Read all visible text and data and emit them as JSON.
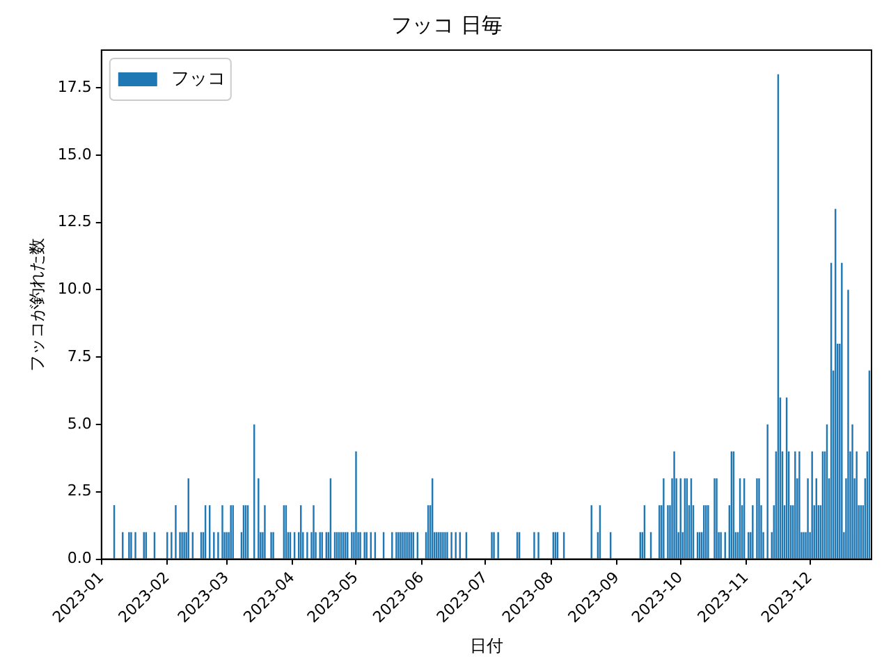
{
  "chart_data": {
    "type": "bar",
    "title": "フッコ 日毎",
    "xlabel": "日付",
    "ylabel": "フッコが釣れた数",
    "x": [
      "2023-01-07",
      "2023-01-11",
      "2023-01-14",
      "2023-01-15",
      "2023-01-17",
      "2023-01-21",
      "2023-01-22",
      "2023-01-26",
      "2023-02-01",
      "2023-02-03",
      "2023-02-05",
      "2023-02-07",
      "2023-02-08",
      "2023-02-09",
      "2023-02-10",
      "2023-02-11",
      "2023-02-13",
      "2023-02-17",
      "2023-02-18",
      "2023-02-19",
      "2023-02-21",
      "2023-02-23",
      "2023-02-25",
      "2023-02-27",
      "2023-02-28",
      "2023-03-01",
      "2023-03-02",
      "2023-03-03",
      "2023-03-04",
      "2023-03-08",
      "2023-03-09",
      "2023-03-10",
      "2023-03-11",
      "2023-03-14",
      "2023-03-16",
      "2023-03-17",
      "2023-03-18",
      "2023-03-19",
      "2023-03-22",
      "2023-03-23",
      "2023-03-28",
      "2023-03-29",
      "2023-03-30",
      "2023-03-31",
      "2023-04-02",
      "2023-04-04",
      "2023-04-05",
      "2023-04-06",
      "2023-04-08",
      "2023-04-10",
      "2023-04-11",
      "2023-04-12",
      "2023-04-14",
      "2023-04-15",
      "2023-04-17",
      "2023-04-18",
      "2023-04-19",
      "2023-04-21",
      "2023-04-22",
      "2023-04-23",
      "2023-04-24",
      "2023-04-25",
      "2023-04-26",
      "2023-04-27",
      "2023-04-29",
      "2023-04-30",
      "2023-05-01",
      "2023-05-02",
      "2023-05-03",
      "2023-05-05",
      "2023-05-06",
      "2023-05-08",
      "2023-05-10",
      "2023-05-14",
      "2023-05-18",
      "2023-05-20",
      "2023-05-21",
      "2023-05-22",
      "2023-05-23",
      "2023-05-24",
      "2023-05-25",
      "2023-05-26",
      "2023-05-27",
      "2023-05-28",
      "2023-05-30",
      "2023-06-03",
      "2023-06-04",
      "2023-06-05",
      "2023-06-06",
      "2023-06-07",
      "2023-06-08",
      "2023-06-09",
      "2023-06-10",
      "2023-06-11",
      "2023-06-12",
      "2023-06-13",
      "2023-06-15",
      "2023-06-17",
      "2023-06-19",
      "2023-06-22",
      "2023-07-04",
      "2023-07-05",
      "2023-07-07",
      "2023-07-16",
      "2023-07-17",
      "2023-07-24",
      "2023-07-26",
      "2023-08-02",
      "2023-08-03",
      "2023-08-04",
      "2023-08-07",
      "2023-08-20",
      "2023-08-23",
      "2023-08-24",
      "2023-08-29",
      "2023-09-12",
      "2023-09-13",
      "2023-09-14",
      "2023-09-17",
      "2023-09-21",
      "2023-09-22",
      "2023-09-23",
      "2023-09-25",
      "2023-09-26",
      "2023-09-27",
      "2023-09-28",
      "2023-09-29",
      "2023-09-30",
      "2023-10-01",
      "2023-10-02",
      "2023-10-03",
      "2023-10-04",
      "2023-10-05",
      "2023-10-06",
      "2023-10-07",
      "2023-10-09",
      "2023-10-10",
      "2023-10-11",
      "2023-10-12",
      "2023-10-13",
      "2023-10-14",
      "2023-10-17",
      "2023-10-18",
      "2023-10-19",
      "2023-10-20",
      "2023-10-22",
      "2023-10-24",
      "2023-10-25",
      "2023-10-26",
      "2023-10-27",
      "2023-10-28",
      "2023-10-29",
      "2023-10-30",
      "2023-10-31",
      "2023-11-02",
      "2023-11-03",
      "2023-11-04",
      "2023-11-06",
      "2023-11-07",
      "2023-11-08",
      "2023-11-09",
      "2023-11-11",
      "2023-11-13",
      "2023-11-14",
      "2023-11-15",
      "2023-11-16",
      "2023-11-17",
      "2023-11-18",
      "2023-11-19",
      "2023-11-20",
      "2023-11-21",
      "2023-11-22",
      "2023-11-23",
      "2023-11-24",
      "2023-11-25",
      "2023-11-26",
      "2023-11-27",
      "2023-11-28",
      "2023-11-29",
      "2023-11-30",
      "2023-12-01",
      "2023-12-02",
      "2023-12-03",
      "2023-12-04",
      "2023-12-05",
      "2023-12-06",
      "2023-12-07",
      "2023-12-08",
      "2023-12-09",
      "2023-12-10",
      "2023-12-11",
      "2023-12-12",
      "2023-12-13",
      "2023-12-14",
      "2023-12-15",
      "2023-12-16",
      "2023-12-17",
      "2023-12-18",
      "2023-12-19",
      "2023-12-20",
      "2023-12-21",
      "2023-12-22",
      "2023-12-23",
      "2023-12-24",
      "2023-12-25",
      "2023-12-26",
      "2023-12-27",
      "2023-12-28",
      "2023-12-29"
    ],
    "series": [
      {
        "name": "フッコ",
        "color": "#1f77b4",
        "values": [
          2,
          1,
          1,
          1,
          1,
          1,
          1,
          1,
          1,
          1,
          2,
          1,
          1,
          1,
          1,
          3,
          1,
          1,
          1,
          2,
          2,
          1,
          1,
          2,
          1,
          1,
          1,
          2,
          2,
          1,
          2,
          2,
          2,
          5,
          3,
          1,
          1,
          2,
          1,
          1,
          2,
          2,
          1,
          1,
          1,
          1,
          2,
          1,
          1,
          1,
          2,
          1,
          1,
          1,
          1,
          1,
          3,
          1,
          1,
          1,
          1,
          1,
          1,
          1,
          1,
          1,
          4,
          1,
          1,
          1,
          1,
          1,
          1,
          1,
          1,
          1,
          1,
          1,
          1,
          1,
          1,
          1,
          1,
          1,
          1,
          1,
          2,
          2,
          3,
          1,
          1,
          1,
          1,
          1,
          1,
          1,
          1,
          1,
          1,
          1,
          1,
          1,
          1,
          1,
          1,
          1,
          1,
          1,
          1,
          1,
          1,
          2,
          1,
          2,
          1,
          1,
          1,
          2,
          1,
          2,
          2,
          3,
          2,
          2,
          3,
          4,
          3,
          1,
          3,
          1,
          3,
          3,
          2,
          3,
          2,
          1,
          1,
          1,
          2,
          2,
          2,
          3,
          3,
          1,
          1,
          1,
          2,
          4,
          4,
          1,
          1,
          3,
          2,
          3,
          1,
          1,
          2,
          3,
          3,
          2,
          1,
          5,
          1,
          2,
          4,
          18,
          6,
          4,
          2,
          6,
          4,
          2,
          2,
          4,
          3,
          4,
          1,
          1,
          1,
          3,
          1,
          4,
          2,
          3,
          2,
          2,
          4,
          4,
          5,
          3,
          11,
          7,
          13,
          8,
          8,
          11,
          1,
          3,
          10,
          4,
          5,
          3,
          4,
          2,
          2,
          2,
          3,
          4,
          7
        ]
      }
    ],
    "xlim": [
      "2023-01-01",
      "2023-12-30"
    ],
    "xticks": [
      "2023-01",
      "2023-02",
      "2023-03",
      "2023-04",
      "2023-05",
      "2023-06",
      "2023-07",
      "2023-08",
      "2023-09",
      "2023-10",
      "2023-11",
      "2023-12"
    ],
    "ylim": [
      0,
      18.9
    ],
    "yticks": [
      {
        "value": 0,
        "label": "0.0"
      },
      {
        "value": 2.5,
        "label": "2.5"
      },
      {
        "value": 5,
        "label": "5.0"
      },
      {
        "value": 7.5,
        "label": "7.5"
      },
      {
        "value": 10,
        "label": "10.0"
      },
      {
        "value": 12.5,
        "label": "12.5"
      },
      {
        "value": 15,
        "label": "15.0"
      },
      {
        "value": 17.5,
        "label": "17.5"
      }
    ],
    "grid": false,
    "legend": "top left"
  }
}
